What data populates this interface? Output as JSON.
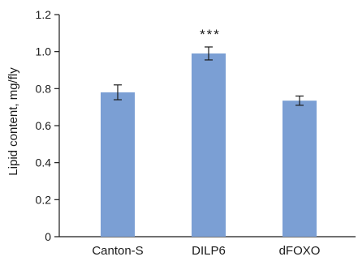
{
  "chart_data": {
    "type": "bar",
    "categories": [
      "Canton-S",
      "DILP6",
      "dFOXO"
    ],
    "values": [
      0.78,
      0.99,
      0.735
    ],
    "errors": [
      0.04,
      0.035,
      0.025
    ],
    "ylabel": "Lipid content, mg/fly",
    "xlabel": "",
    "ylim": [
      0,
      1.2
    ],
    "yticks": [
      0,
      0.2,
      0.4,
      0.6,
      0.8,
      1.0,
      1.2
    ],
    "ytick_labels": [
      "0",
      "0.2",
      "0.4",
      "0.6",
      "0.8",
      "1.0",
      "1.2"
    ],
    "annotations": [
      {
        "category": "DILP6",
        "text": "***"
      }
    ],
    "grid": false,
    "bar_color": "#7b9fd4",
    "axis_color": "#1a1a1a"
  }
}
